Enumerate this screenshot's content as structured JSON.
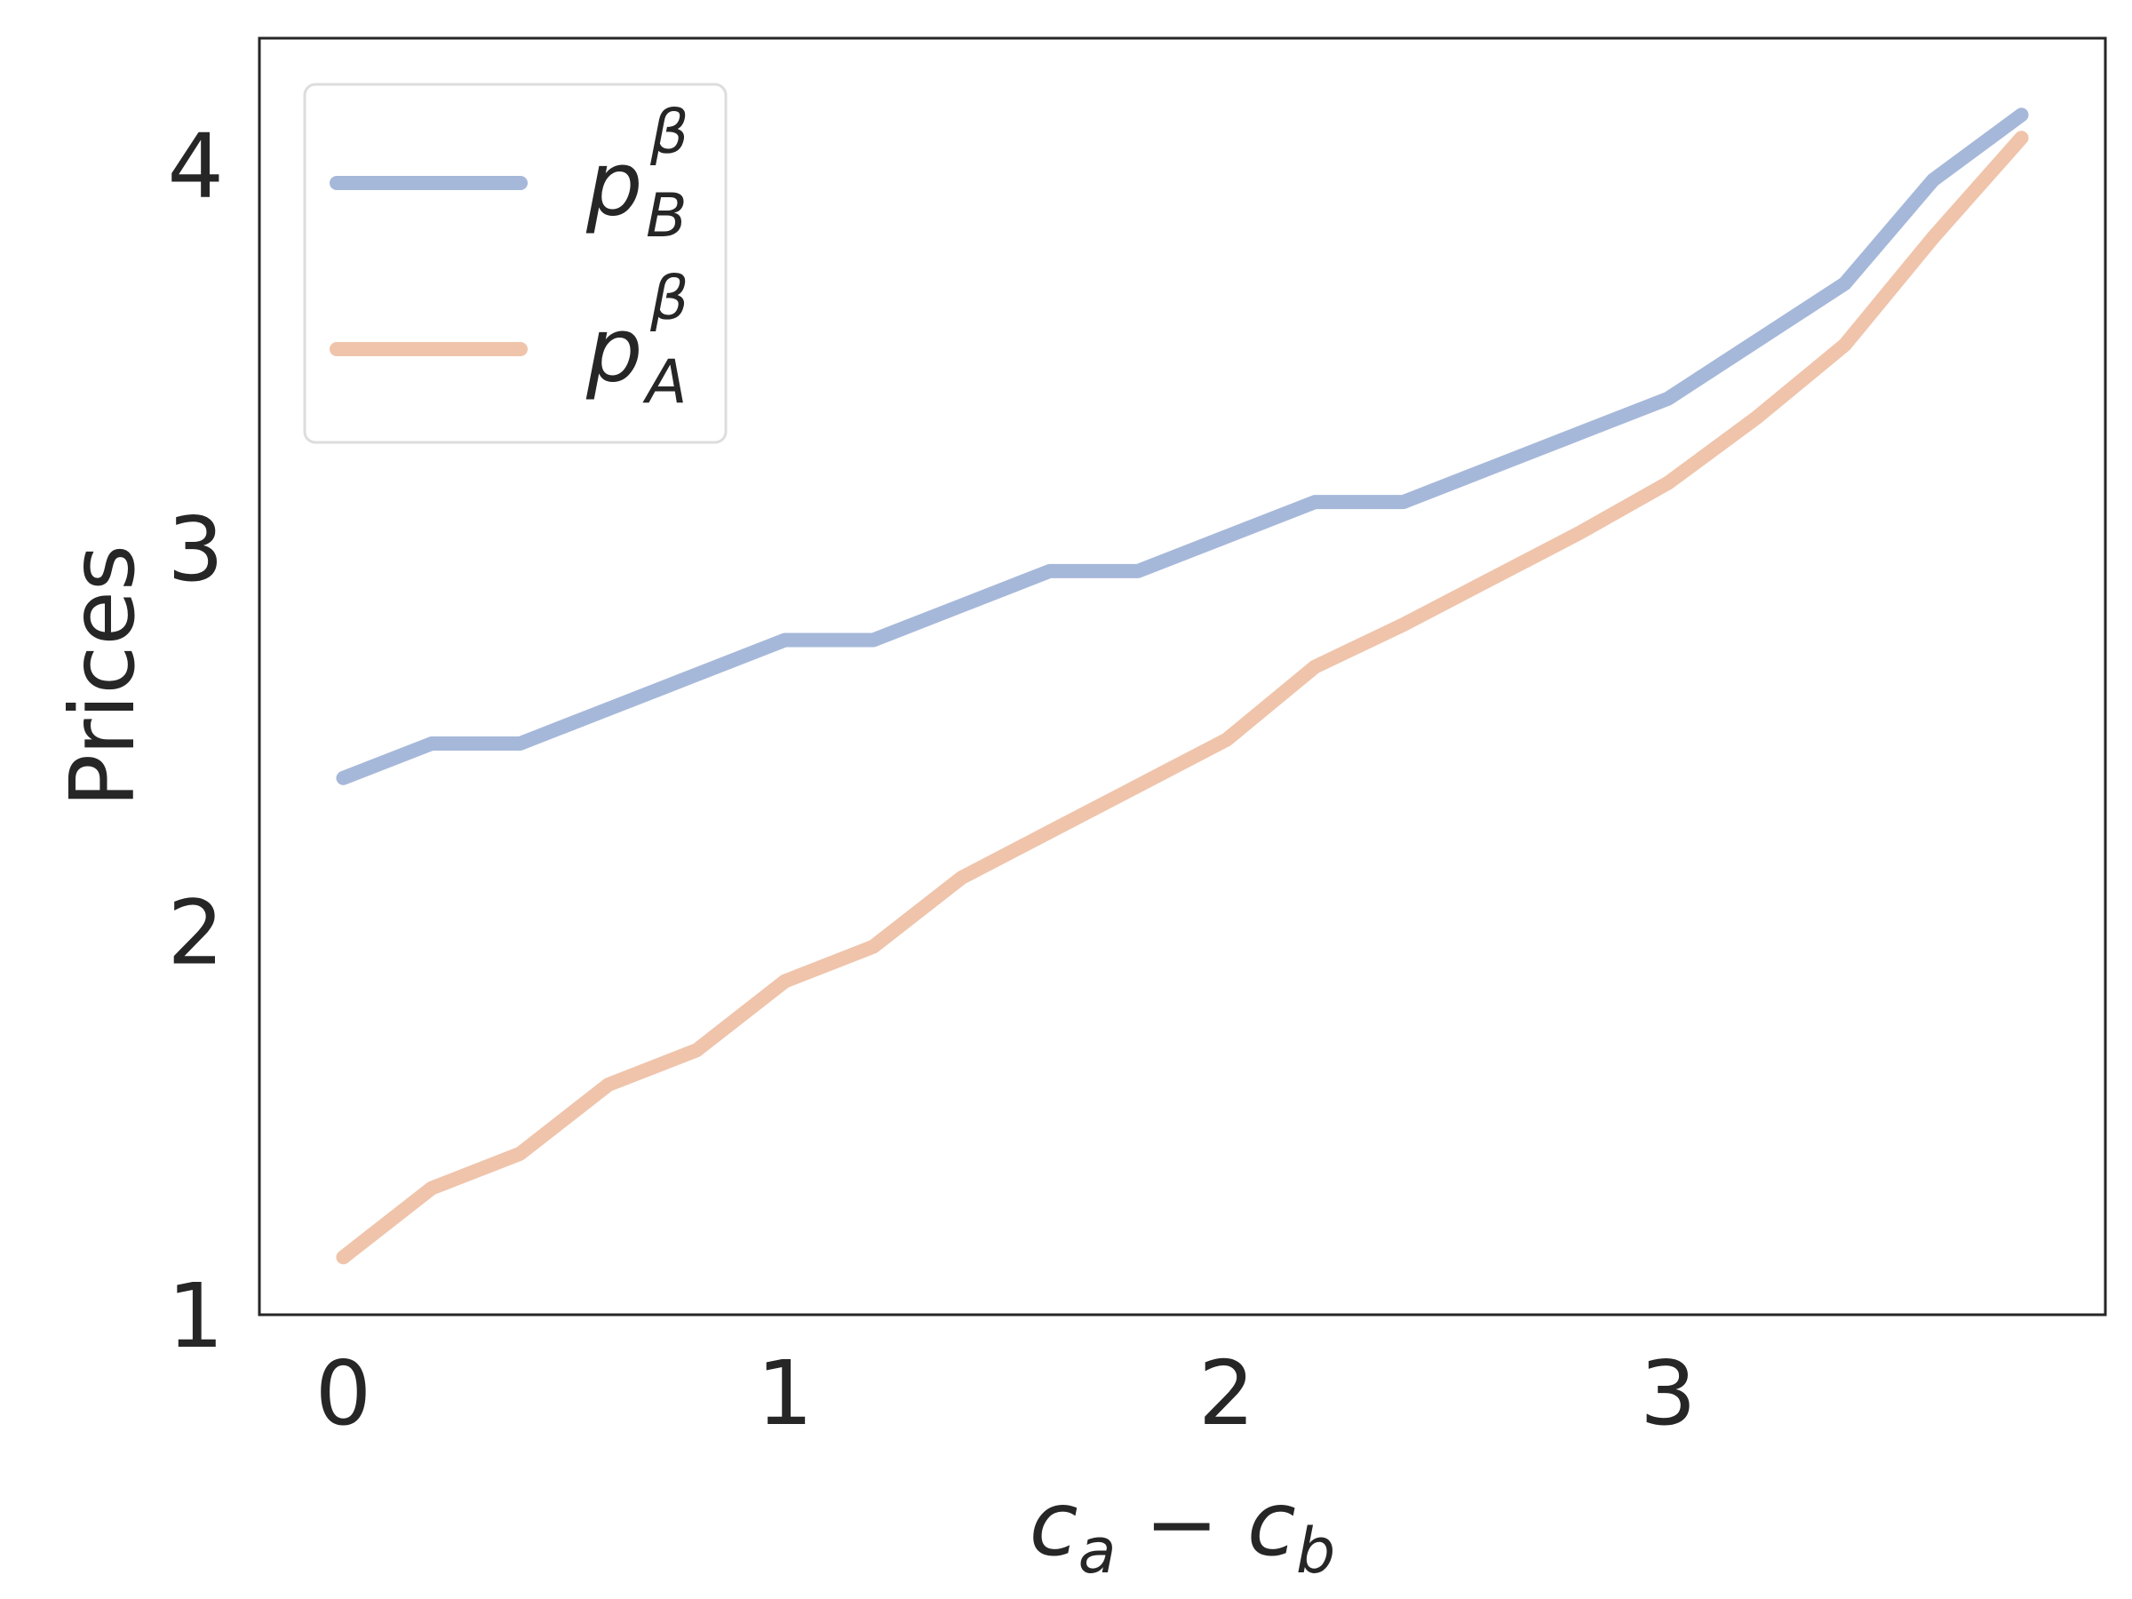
{
  "chart_data": {
    "type": "line",
    "x": [
      0,
      0.2,
      0.4,
      0.6,
      0.8,
      1.0,
      1.2,
      1.4,
      1.6,
      1.8,
      2.0,
      2.2,
      2.4,
      2.6,
      2.8,
      3.0,
      3.2,
      3.4,
      3.6,
      3.8
    ],
    "series": [
      {
        "name": "p_B^β",
        "color": "#a6b8d9",
        "values": [
          2.4,
          2.49,
          2.49,
          2.58,
          2.67,
          2.76,
          2.76,
          2.85,
          2.94,
          2.94,
          3.03,
          3.12,
          3.12,
          3.21,
          3.3,
          3.39,
          3.54,
          3.69,
          3.96,
          4.13
        ]
      },
      {
        "name": "p_A^β",
        "color": "#efc4ab",
        "values": [
          1.15,
          1.33,
          1.42,
          1.6,
          1.69,
          1.87,
          1.96,
          2.14,
          2.26,
          2.38,
          2.5,
          2.69,
          2.8,
          2.92,
          3.04,
          3.17,
          3.34,
          3.53,
          3.81,
          4.07
        ]
      }
    ],
    "xlabel": "c_a − c_b",
    "ylabel": "Prices",
    "xlim": [
      -0.19,
      3.99
    ],
    "ylim": [
      1.0,
      4.33
    ],
    "xticks": [
      "0",
      "1",
      "2",
      "3"
    ],
    "yticks": [
      "1",
      "2",
      "3",
      "4"
    ],
    "legend": [
      {
        "base": "p",
        "sub": "B",
        "sup": "β"
      },
      {
        "base": "p",
        "sub": "A",
        "sup": "β"
      }
    ],
    "legend_position": "top-left",
    "grid": false
  }
}
